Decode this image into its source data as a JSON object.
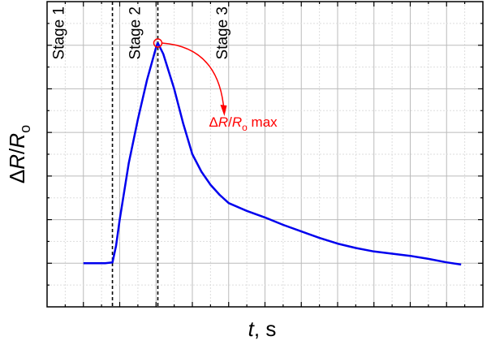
{
  "chart_data": {
    "type": "line",
    "title": "",
    "xlabel": {
      "italic": "t",
      "rest": ", s"
    },
    "ylabel": {
      "delta": "Δ",
      "r1": "R",
      "slash": "/",
      "r2": "R",
      "sub": "o"
    },
    "xlim": [
      0,
      12
    ],
    "ylim": [
      0,
      7
    ],
    "x_major_ticks": [
      1,
      2,
      3,
      4,
      5,
      6,
      7,
      8,
      9,
      10,
      11
    ],
    "y_major_ticks": [
      1,
      2,
      3,
      4,
      5,
      6
    ],
    "tick_labels_shown": false,
    "grid": true,
    "series": [
      {
        "color": "#0000ee",
        "x": [
          1.0,
          1.2,
          1.4,
          1.6,
          1.8,
          1.9,
          2.0,
          2.25,
          2.5,
          2.75,
          3.0,
          3.05,
          3.2,
          3.5,
          3.75,
          4.0,
          4.25,
          4.5,
          4.75,
          5.0,
          5.5,
          6.0,
          6.5,
          7.0,
          7.5,
          8.0,
          8.5,
          9.0,
          9.5,
          10.0,
          10.5,
          11.0,
          11.4
        ],
        "y": [
          1.0,
          1.0,
          1.0,
          1.0,
          1.02,
          1.4,
          2.0,
          3.3,
          4.3,
          5.2,
          5.95,
          6.05,
          5.8,
          5.0,
          4.2,
          3.5,
          3.1,
          2.8,
          2.57,
          2.38,
          2.2,
          2.05,
          1.88,
          1.73,
          1.58,
          1.45,
          1.35,
          1.27,
          1.22,
          1.17,
          1.1,
          1.02,
          0.97
        ]
      }
    ],
    "vlines": [
      1.8,
      3.05
    ],
    "stage_labels": [
      {
        "text": "Stage 1",
        "x": 0.3
      },
      {
        "text": "Stage 2",
        "x": 2.4
      },
      {
        "text": "Stage 3",
        "x": 4.8
      }
    ],
    "annotation": {
      "color": "#ff0000",
      "point": [
        3.05,
        6.05
      ],
      "text_delta": "Δ",
      "text_r1": "R",
      "text_slash": "/",
      "text_r2": "R",
      "text_sub": "o",
      "text_rest": " max"
    }
  }
}
